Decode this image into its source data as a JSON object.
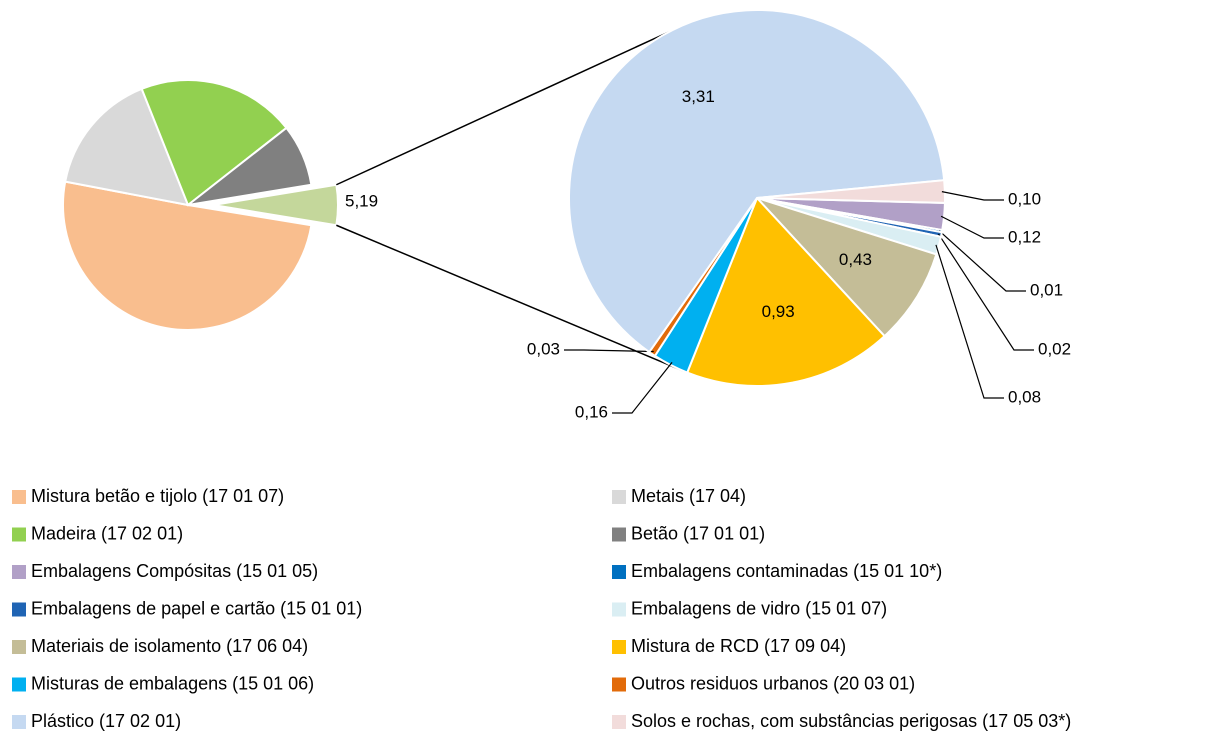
{
  "chart_data": [
    {
      "type": "pie",
      "categories": [
        "Mistura betão e tijolo (17 01 07)",
        "Metais (17 04)",
        "Madeira (17 02 01)",
        "Betão (17 01 01)",
        null
      ],
      "values": [
        50.5,
        16,
        20.5,
        8,
        5.19
      ],
      "value_labels": [
        null,
        null,
        null,
        null,
        "5,19"
      ],
      "colors": [
        "#F9BE8E",
        "#D9D9D9",
        "#92D050",
        "#808080",
        "#C4D79B"
      ]
    },
    {
      "type": "pie",
      "categories": [
        "Embalagens Compósitas  (15 01 05)",
        "Embalagens contaminadas  (15 01 10*)",
        "Embalagens de papel e cartão (15 01 01)",
        "Embalagens de vidro (15 01 07)",
        "Materiais de isolamento (17 06 04)",
        "Mistura de RCD (17 09 04)",
        "Misturas de embalagens (15 01 06)",
        "Outros residuos urbanos (20 03 01)",
        "Plástico (17 02 01)",
        "Solos e rochas, com substâncias perigosas (17 05 03*)"
      ],
      "values": [
        0.12,
        0.01,
        0.02,
        0.08,
        0.43,
        0.93,
        0.16,
        0.03,
        3.31,
        0.1
      ],
      "value_labels": [
        "0,12",
        "0,01",
        "0,02",
        "0,08",
        "0,43",
        "0,93",
        "0,16",
        "0,03",
        "3,31",
        "0,10"
      ],
      "colors": [
        "#B1A0C7",
        "#0070C0",
        "#1F64B4",
        "#DAEEF3",
        "#C4BD97",
        "#FFC000",
        "#00B0F0",
        "#E26B0A",
        "#C5D9F1",
        "#F2DCDB"
      ]
    }
  ]
}
